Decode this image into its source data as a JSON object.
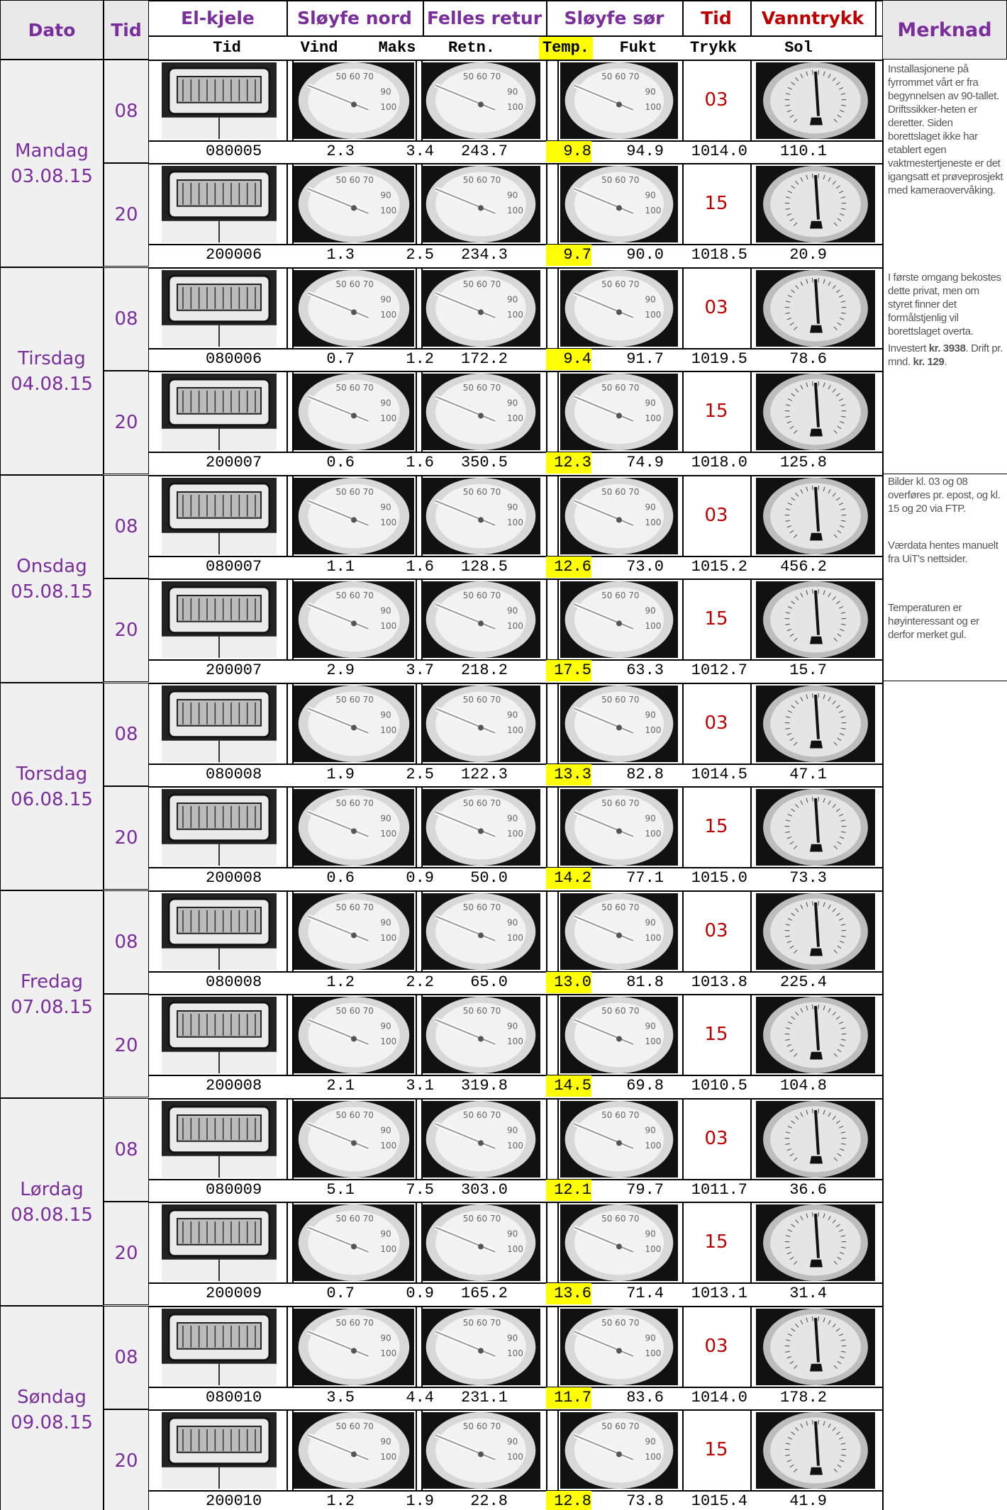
{
  "headers": {
    "dato": "Dato",
    "tid": "Tid",
    "el_kjele": "El-kjele",
    "sloyfe_nord": "Sløyfe nord",
    "felles_retur": "Felles retur",
    "sloyfe_sor": "Sløyfe sør",
    "tid_red": "Tid",
    "vanntrykk": "Vanntrykk",
    "merknad": "Merknad"
  },
  "subheaders": [
    "Tid",
    "Vind",
    "Maks",
    "Retn.",
    "Temp.",
    "Fukt",
    "Trykk",
    "Sol"
  ],
  "days": [
    {
      "name": "Mandag",
      "date": "03.08.15",
      "rows": [
        {
          "tid": "08",
          "red": "03",
          "time": "080005",
          "vind": "2.3",
          "maks": "3.4",
          "retn": "243.7",
          "temp": "9.8",
          "fukt": "94.9",
          "trykk": "1014.0",
          "sol": "110.1"
        },
        {
          "tid": "20",
          "red": "15",
          "time": "200006",
          "vind": "1.3",
          "maks": "2.5",
          "retn": "234.3",
          "temp": "9.7",
          "fukt": "90.0",
          "trykk": "1018.5",
          "sol": "20.9"
        }
      ]
    },
    {
      "name": "Tirsdag",
      "date": "04.08.15",
      "rows": [
        {
          "tid": "08",
          "red": "03",
          "time": "080006",
          "vind": "0.7",
          "maks": "1.2",
          "retn": "172.2",
          "temp": "9.4",
          "fukt": "91.7",
          "trykk": "1019.5",
          "sol": "78.6"
        },
        {
          "tid": "20",
          "red": "15",
          "time": "200007",
          "vind": "0.6",
          "maks": "1.6",
          "retn": "350.5",
          "temp": "12.3",
          "fukt": "74.9",
          "trykk": "1018.0",
          "sol": "125.8"
        }
      ]
    },
    {
      "name": "Onsdag",
      "date": "05.08.15",
      "rows": [
        {
          "tid": "08",
          "red": "03",
          "time": "080007",
          "vind": "1.1",
          "maks": "1.6",
          "retn": "128.5",
          "temp": "12.6",
          "fukt": "73.0",
          "trykk": "1015.2",
          "sol": "456.2"
        },
        {
          "tid": "20",
          "red": "15",
          "time": "200007",
          "vind": "2.9",
          "maks": "3.7",
          "retn": "218.2",
          "temp": "17.5",
          "fukt": "63.3",
          "trykk": "1012.7",
          "sol": "15.7"
        }
      ]
    },
    {
      "name": "Torsdag",
      "date": "06.08.15",
      "rows": [
        {
          "tid": "08",
          "red": "03",
          "time": "080008",
          "vind": "1.9",
          "maks": "2.5",
          "retn": "122.3",
          "temp": "13.3",
          "fukt": "82.8",
          "trykk": "1014.5",
          "sol": "47.1"
        },
        {
          "tid": "20",
          "red": "15",
          "time": "200008",
          "vind": "0.6",
          "maks": "0.9",
          "retn": "50.0",
          "temp": "14.2",
          "fukt": "77.1",
          "trykk": "1015.0",
          "sol": "73.3"
        }
      ]
    },
    {
      "name": "Fredag",
      "date": "07.08.15",
      "rows": [
        {
          "tid": "08",
          "red": "03",
          "time": "080008",
          "vind": "1.2",
          "maks": "2.2",
          "retn": "65.0",
          "temp": "13.0",
          "fukt": "81.8",
          "trykk": "1013.8",
          "sol": "225.4"
        },
        {
          "tid": "20",
          "red": "15",
          "time": "200008",
          "vind": "2.1",
          "maks": "3.1",
          "retn": "319.8",
          "temp": "14.5",
          "fukt": "69.8",
          "trykk": "1010.5",
          "sol": "104.8"
        }
      ]
    },
    {
      "name": "Lørdag",
      "date": "08.08.15",
      "rows": [
        {
          "tid": "08",
          "red": "03",
          "time": "080009",
          "vind": "5.1",
          "maks": "7.5",
          "retn": "303.0",
          "temp": "12.1",
          "fukt": "79.7",
          "trykk": "1011.7",
          "sol": "36.6"
        },
        {
          "tid": "20",
          "red": "15",
          "time": "200009",
          "vind": "0.7",
          "maks": "0.9",
          "retn": "165.2",
          "temp": "13.6",
          "fukt": "71.4",
          "trykk": "1013.1",
          "sol": "31.4"
        }
      ]
    },
    {
      "name": "Søndag",
      "date": "09.08.15",
      "rows": [
        {
          "tid": "08",
          "red": "03",
          "time": "080010",
          "vind": "3.5",
          "maks": "4.4",
          "retn": "231.1",
          "temp": "11.7",
          "fukt": "83.6",
          "trykk": "1014.0",
          "sol": "178.2"
        },
        {
          "tid": "20",
          "red": "15",
          "time": "200010",
          "vind": "1.2",
          "maks": "1.9",
          "retn": "22.8",
          "temp": "12.8",
          "fukt": "73.8",
          "trykk": "1015.4",
          "sol": "41.9"
        }
      ]
    }
  ],
  "notes": {
    "block1": "Installasjonene på fyrrommet vårt er fra begynnelsen av 90-tallet. Driftssikker-heten er deretter. Siden borettslaget ikke har etablert egen vaktmestertjeneste er det igangsatt et prøveprosjekt med kameraovervåking.",
    "block2": "I første omgang bekostes dette privat, men om styret finner det formålstjenlig vil borettslaget overta.",
    "block3a": "Investert ",
    "block3b": "kr. 3938",
    "block3c": ". Drift pr. mnd. ",
    "block3d": "kr. 129",
    "block3e": ".",
    "block4": "Bilder kl. 03 og 08 overføres pr. epost, og kl. 15 og 20 via FTP.",
    "block5": "Værdata hentes manuelt fra UiT's nettsider.",
    "block6": "Temperaturen er høyinteressant og er derfor merket gul."
  },
  "colors": {
    "header_purple": "#7a2e9c",
    "red": "#c00000",
    "highlight": "#ffff00",
    "grey_bg": "#f0f0f0"
  },
  "icons": [
    "heater-gauge-photo",
    "thermometer-dial-photo",
    "pressure-gauge-photo"
  ]
}
